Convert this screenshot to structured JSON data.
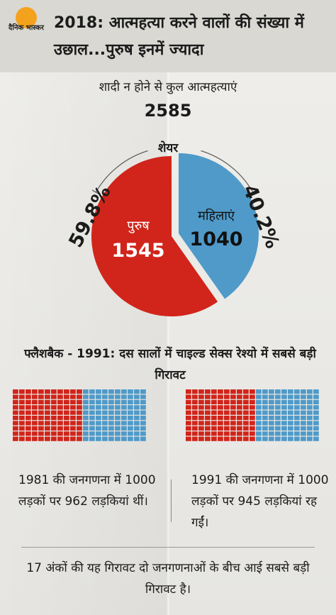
{
  "brand": {
    "logo_text": "दैनिक भास्कर"
  },
  "header": {
    "title": "2018: आत्महत्या करने वालों की संख्या में उछाल...पुरुष इनमें ज्यादा"
  },
  "pie_section": {
    "subtitle": "शादी न होने से कुल आत्महत्याएं",
    "total": "2585",
    "share_label": "शेयर"
  },
  "flashback": {
    "heading": "फ्लैशबैक - 1991: दस सालों में चाइल्ड सेक्स रेश्यो में सबसे बड़ी गिरावट"
  },
  "census": [
    {
      "text": "1981 की जनगणना में 1000 लड़कों पर 962 लड़कियां थीं।"
    },
    {
      "text": "1991 की जनगणना में 1000 लड़कों पर 945 लड़कियां रह गईं।"
    }
  ],
  "footer": {
    "note": "17 अंकों की यह गिरावट दो जनगणनाओं के बीच आई सबसे बड़ी गिरावट है।"
  },
  "colors": {
    "male": "#d1241a",
    "female": "#4f9ac9"
  },
  "chart_data": [
    {
      "type": "pie",
      "title": "शादी न होने से कुल आत्महत्याएं",
      "slices": [
        {
          "name": "पुरुष",
          "value": 1545,
          "percent_label": "59.8%",
          "color": "#d1241a"
        },
        {
          "name": "महिलाएं",
          "value": 1040,
          "percent_label": "40.2%",
          "color": "#4f9ac9"
        }
      ]
    },
    {
      "type": "waffle",
      "year": "1981",
      "series": [
        {
          "name": "लड़के",
          "value": 1000,
          "color": "#d1241a"
        },
        {
          "name": "लड़कियां",
          "value": 962,
          "color": "#4f9ac9"
        }
      ]
    },
    {
      "type": "waffle",
      "year": "1991",
      "series": [
        {
          "name": "लड़के",
          "value": 1000,
          "color": "#d1241a"
        },
        {
          "name": "लड़कियां",
          "value": 945,
          "color": "#4f9ac9"
        }
      ]
    }
  ]
}
